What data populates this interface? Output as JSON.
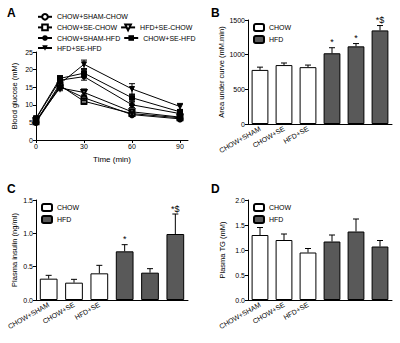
{
  "chart_data": [
    {
      "type": "line",
      "title": "A",
      "x_label": "Time (min)",
      "y_label": "Blood glucose (mM)",
      "x": [
        0,
        15,
        30,
        60,
        90
      ],
      "xlim": [
        0,
        95
      ],
      "xticks": [
        0,
        30,
        60,
        90
      ],
      "ylim": [
        0,
        25
      ],
      "yticks": [
        0,
        5,
        10,
        15,
        20,
        25
      ],
      "grid": false,
      "legend": "top",
      "series": [
        {
          "name": "CHOW+SHAM-CHOW",
          "color": "#000000",
          "marker": "circle-open",
          "line_style": "solid",
          "values": [
            5.0,
            15.2,
            12.0,
            7.2,
            6.0
          ],
          "errors": [
            0.3,
            0.8,
            0.8,
            0.5,
            0.3
          ]
        },
        {
          "name": "CHOW+SE-CHOW",
          "color": "#000000",
          "marker": "square-open",
          "line_style": "solid",
          "values": [
            5.2,
            15.5,
            11.0,
            7.5,
            6.3
          ],
          "errors": [
            0.3,
            0.7,
            0.9,
            0.5,
            0.4
          ]
        },
        {
          "name": "HFD+SE-CHOW",
          "color": "#000000",
          "marker": "triangle-down-open",
          "line_style": "solid",
          "values": [
            5.5,
            14.8,
            13.5,
            8.0,
            6.5
          ],
          "errors": [
            0.4,
            0.8,
            1.0,
            0.6,
            0.4
          ]
        },
        {
          "name": "CHOW+SHAM-HFD",
          "color": "#000000",
          "marker": "circle",
          "line_style": "solid",
          "values": [
            6.0,
            17.0,
            18.0,
            10.0,
            7.5
          ],
          "errors": [
            0.4,
            0.9,
            1.0,
            0.8,
            0.5
          ]
        },
        {
          "name": "CHOW+SE-HFD",
          "color": "#000000",
          "marker": "square",
          "line_style": "solid",
          "values": [
            6.2,
            17.5,
            19.0,
            12.0,
            8.0
          ],
          "errors": [
            0.4,
            0.8,
            1.0,
            1.0,
            0.6
          ]
        },
        {
          "name": "HFD+SE-HFD",
          "color": "#000000",
          "marker": "triangle-down",
          "line_style": "solid",
          "values": [
            5.2,
            16.0,
            21.5,
            14.5,
            9.5
          ],
          "errors": [
            0.4,
            1.0,
            1.2,
            1.5,
            0.9
          ]
        }
      ]
    },
    {
      "type": "bar",
      "title": "B",
      "y_label": "Area under curve (mM.min)",
      "categories": [
        "CHOW+SHAM",
        "CHOW+SE",
        "HFD+SE",
        null,
        null,
        null
      ],
      "ylim": [
        0,
        1500
      ],
      "yticks": [
        0,
        500,
        1000,
        1500
      ],
      "grid": false,
      "legend": "top-left",
      "series": [
        {
          "name": "CHOW",
          "color": "#ffffff",
          "values": [
            780,
            850,
            820,
            null,
            null,
            null
          ],
          "errors": [
            40,
            30,
            30,
            null,
            null,
            null
          ]
        },
        {
          "name": "HFD",
          "color": "#595959",
          "values": [
            null,
            null,
            null,
            1020,
            1120,
            1350
          ],
          "errors": [
            null,
            null,
            null,
            80,
            40,
            70
          ],
          "annotations": [
            null,
            null,
            null,
            "*",
            "*",
            "*$"
          ]
        }
      ]
    },
    {
      "type": "bar",
      "title": "C",
      "y_label": "Plasma insulin (ng/ml)",
      "categories": [
        "CHOW+SHAM",
        "CHOW+SE",
        "HFD+SE",
        null,
        null,
        null
      ],
      "ylim": [
        0,
        1.5
      ],
      "yticks": [
        {
          "value": 0,
          "label": "0.0"
        },
        0.5,
        {
          "value": 1,
          "label": "1.0"
        },
        1.5
      ],
      "grid": false,
      "legend": "top-left",
      "series": [
        {
          "name": "CHOW",
          "color": "#ffffff",
          "values": [
            0.32,
            0.26,
            0.4,
            null,
            null,
            null
          ],
          "errors": [
            0.05,
            0.05,
            0.12,
            null,
            null,
            null
          ]
        },
        {
          "name": "HFD",
          "color": "#595959",
          "values": [
            null,
            null,
            null,
            0.73,
            0.41,
            0.99
          ],
          "errors": [
            null,
            null,
            null,
            0.1,
            0.06,
            0.3
          ],
          "annotations": [
            null,
            null,
            null,
            "*",
            null,
            "*$"
          ]
        }
      ]
    },
    {
      "type": "bar",
      "title": "D",
      "y_label": "Plasma TG (mM)",
      "categories": [
        "CHOW+SHAM",
        "CHOW+SE",
        "HFD+SE",
        null,
        null,
        null
      ],
      "ylim": [
        0,
        2
      ],
      "yticks": [
        {
          "value": 0,
          "label": "0.0"
        },
        0.5,
        {
          "value": 1,
          "label": "1.0"
        },
        1.5,
        {
          "value": 2,
          "label": "2.0"
        }
      ],
      "grid": false,
      "legend": "top-left",
      "series": [
        {
          "name": "CHOW",
          "color": "#ffffff",
          "values": [
            1.3,
            1.2,
            0.95,
            null,
            null,
            null
          ],
          "errors": [
            0.15,
            0.12,
            0.08,
            null,
            null,
            null
          ]
        },
        {
          "name": "HFD",
          "color": "#595959",
          "values": [
            null,
            null,
            null,
            1.17,
            1.37,
            1.07
          ],
          "errors": [
            null,
            null,
            null,
            0.13,
            0.25,
            0.12
          ]
        }
      ]
    }
  ]
}
